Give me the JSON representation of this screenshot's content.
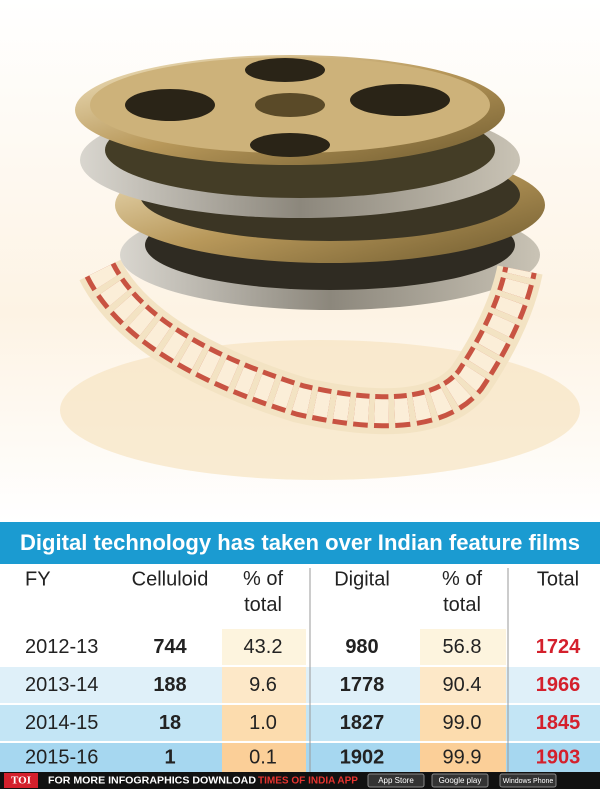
{
  "header": {
    "title": "Digital technology has taken over Indian feature films"
  },
  "table": {
    "columns": [
      "FY",
      "Celluloid",
      "% of total",
      "Digital",
      "% of total",
      "Total"
    ],
    "rows": [
      [
        "2012-13",
        "744",
        "43.2",
        "980",
        "56.8",
        "1724"
      ],
      [
        "2013-14",
        "188",
        "9.6",
        "1778",
        "90.4",
        "1966"
      ],
      [
        "2014-15",
        "18",
        "1.0",
        "1827",
        "99.0",
        "1845"
      ],
      [
        "2015-16",
        "1",
        "0.1",
        "1902",
        "99.9",
        "1903"
      ]
    ]
  },
  "footer": {
    "logo": "TOI",
    "text": "FOR MORE  INFOGRAPHICS DOWNLOAD",
    "app": "TIMES OF INDIA APP",
    "badges": [
      "App Store",
      "Google play",
      "Windows Phone"
    ]
  }
}
